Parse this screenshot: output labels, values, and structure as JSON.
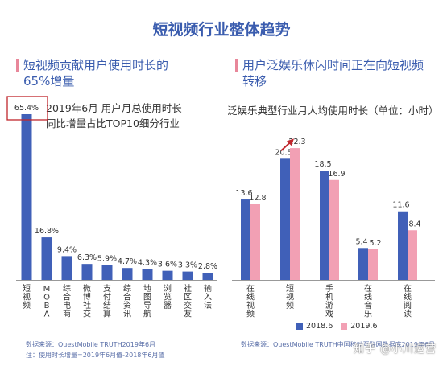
{
  "main_title": "短视频行业整体趋势",
  "chart_data": [
    {
      "type": "bar",
      "panel_title_lines": [
        "短视频贡献用户使用时长的",
        "65%增量"
      ],
      "subtitle_lines": [
        "2019年6月 用户月总使用时长",
        "同比增量占比TOP10细分行业"
      ],
      "categories": [
        "短视频",
        "MOBA",
        "综合电商",
        "微博社交",
        "支付结算",
        "综合资讯",
        "地图导航",
        "浏览器",
        "社区交友",
        "输入法"
      ],
      "values": [
        65.4,
        16.8,
        9.4,
        6.3,
        5.9,
        4.7,
        4.3,
        3.6,
        3.3,
        2.8
      ],
      "value_labels": [
        "65.4%",
        "16.8%",
        "9.4%",
        "6.3%",
        "5.9%",
        "4.7%",
        "4.3%",
        "3.6%",
        "3.3%",
        "2.8%"
      ],
      "highlight_index": 0,
      "color": "#4060b8",
      "source": "数据来源：QuestMobile TRUTH2019年6月",
      "note": "注：使用时长增量=2019年6月值-2018年6月值"
    },
    {
      "type": "bar",
      "panel_title_lines": [
        "用户泛娱乐休闲时间正在向短视频",
        "转移"
      ],
      "subtitle_lines": [
        "泛娱乐典型行业月人均使用时长（单位：小时）"
      ],
      "categories": [
        "在线视频",
        "短视频",
        "手机游戏",
        "在线音乐",
        "在线阅读"
      ],
      "series": [
        {
          "name": "2018.6",
          "values": [
            13.6,
            20.5,
            18.5,
            5.4,
            11.6
          ],
          "color": "#4060b8"
        },
        {
          "name": "2019.6",
          "values": [
            12.8,
            22.3,
            16.9,
            5.2,
            8.4
          ],
          "color": "#f2a0b4"
        }
      ],
      "source": "数据来源：QuestMobile TRUTH中国移动互联网数据库2019年6月"
    }
  ],
  "watermark": "知乎 @小川运营"
}
